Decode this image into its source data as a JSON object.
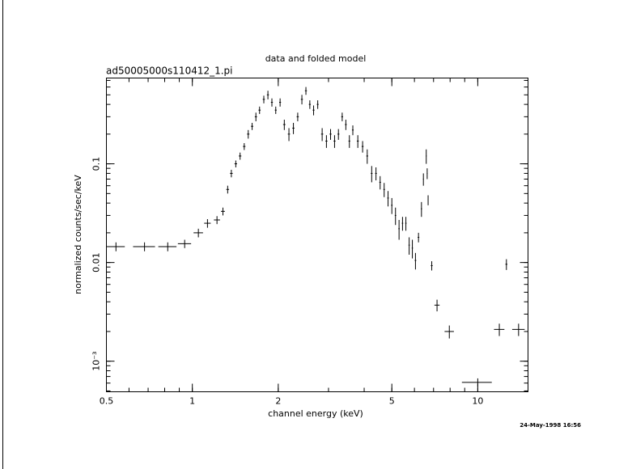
{
  "chart_data": {
    "type": "scatter",
    "title": "data and folded model",
    "subtitle": "ad50005000s110412_1.pi",
    "xlabel": "channel energy (keV)",
    "ylabel": "normalized counts/sec/keV",
    "annotation": "24-May-1998 16:56",
    "xscale": "log",
    "yscale": "log",
    "color": "#000000",
    "xlim": [
      0.5,
      15
    ],
    "ylim": [
      0.00049,
      0.74
    ],
    "xticks": [
      0.5,
      1,
      2,
      5,
      10
    ],
    "yticks": [
      {
        "value": 0.001,
        "label": "10⁻³"
      },
      0.01,
      0.1
    ],
    "x": [
      0.54,
      0.68,
      0.82,
      0.94,
      1.05,
      1.13,
      1.22,
      1.28,
      1.33,
      1.37,
      1.42,
      1.47,
      1.52,
      1.57,
      1.62,
      1.67,
      1.72,
      1.78,
      1.84,
      1.9,
      1.96,
      2.03,
      2.1,
      2.18,
      2.26,
      2.34,
      2.42,
      2.5,
      2.58,
      2.66,
      2.75,
      2.85,
      2.95,
      3.05,
      3.15,
      3.25,
      3.35,
      3.45,
      3.55,
      3.65,
      3.8,
      3.95,
      4.1,
      4.25,
      4.4,
      4.55,
      4.7,
      4.85,
      5.0,
      5.15,
      5.3,
      5.45,
      5.6,
      5.75,
      5.9,
      6.05,
      6.2,
      6.35,
      6.45,
      6.6,
      6.65,
      6.7,
      6.9,
      7.2,
      7.95,
      10.0,
      11.9,
      12.6,
      13.9
    ],
    "values": [
      0.0145,
      0.0145,
      0.0145,
      0.0155,
      0.02,
      0.025,
      0.027,
      0.033,
      0.055,
      0.08,
      0.1,
      0.12,
      0.15,
      0.2,
      0.24,
      0.3,
      0.35,
      0.45,
      0.5,
      0.42,
      0.35,
      0.42,
      0.25,
      0.2,
      0.23,
      0.3,
      0.45,
      0.55,
      0.4,
      0.35,
      0.4,
      0.2,
      0.17,
      0.2,
      0.17,
      0.2,
      0.3,
      0.25,
      0.17,
      0.22,
      0.17,
      0.15,
      0.12,
      0.08,
      0.08,
      0.065,
      0.055,
      0.045,
      0.038,
      0.03,
      0.022,
      0.025,
      0.025,
      0.015,
      0.014,
      0.0105,
      0.018,
      0.035,
      0.07,
      0.12,
      0.08,
      0.043,
      0.0093,
      0.0037,
      0.002,
      0.00061,
      0.0021,
      0.0096,
      0.0021
    ],
    "xerr": [
      0.04,
      0.06,
      0.06,
      0.05,
      0.04,
      0.03,
      0.03,
      0.02,
      0.015,
      0.015,
      0.015,
      0.015,
      0.015,
      0.015,
      0.015,
      0.015,
      0.015,
      0.015,
      0.015,
      0.015,
      0.015,
      0.015,
      0.02,
      0.02,
      0.02,
      0.02,
      0.02,
      0.02,
      0.02,
      0.02,
      0.02,
      0.025,
      0.025,
      0.025,
      0.025,
      0.025,
      0.025,
      0.025,
      0.025,
      0.025,
      0.03,
      0.03,
      0.03,
      0.03,
      0.03,
      0.03,
      0.03,
      0.03,
      0.03,
      0.03,
      0.03,
      0.03,
      0.03,
      0.03,
      0.03,
      0.04,
      0.04,
      0.03,
      0.02,
      0.02,
      0.02,
      0.02,
      0.05,
      0.15,
      0.3,
      1.2,
      0.5,
      0.1,
      0.7
    ],
    "yerr": [
      0.0015,
      0.0015,
      0.0015,
      0.0015,
      0.002,
      0.0025,
      0.0025,
      0.003,
      0.005,
      0.007,
      0.008,
      0.01,
      0.012,
      0.02,
      0.02,
      0.03,
      0.03,
      0.04,
      0.05,
      0.04,
      0.03,
      0.04,
      0.03,
      0.03,
      0.03,
      0.03,
      0.05,
      0.05,
      0.04,
      0.04,
      0.04,
      0.03,
      0.025,
      0.025,
      0.025,
      0.025,
      0.03,
      0.03,
      0.025,
      0.025,
      0.025,
      0.02,
      0.02,
      0.015,
      0.012,
      0.01,
      0.009,
      0.008,
      0.007,
      0.006,
      0.005,
      0.004,
      0.004,
      0.003,
      0.003,
      0.002,
      0.002,
      0.006,
      0.01,
      0.02,
      0.01,
      0.005,
      0.001,
      0.0005,
      0.0003,
      6e-05,
      0.0003,
      0.0012,
      0.0003
    ]
  }
}
